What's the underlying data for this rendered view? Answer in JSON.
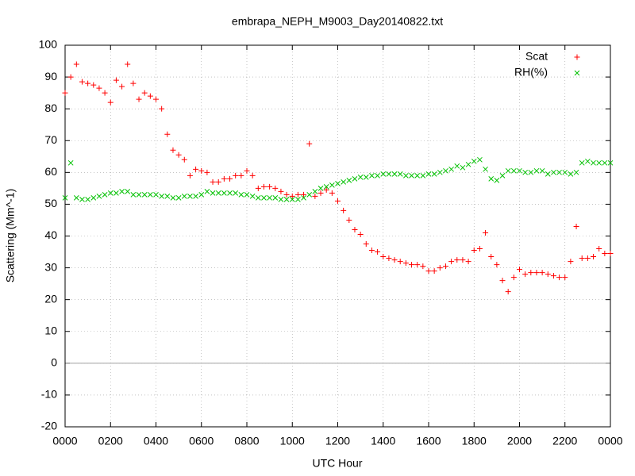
{
  "chart_data": {
    "type": "scatter",
    "title": "embrapa_NEPH_M9003_Day20140822.txt",
    "x_label": "UTC Hour",
    "y_label": "Scattering (Mm^-1)",
    "x": [
      0,
      0.25,
      0.5,
      0.75,
      1,
      1.25,
      1.5,
      1.75,
      2,
      2.25,
      2.5,
      2.75,
      3,
      3.25,
      3.5,
      3.75,
      4,
      4.25,
      4.5,
      4.75,
      5,
      5.25,
      5.5,
      5.75,
      6,
      6.25,
      6.5,
      6.75,
      7,
      7.25,
      7.5,
      7.75,
      8,
      8.25,
      8.5,
      8.75,
      9,
      9.25,
      9.5,
      9.75,
      10,
      10.25,
      10.5,
      10.75,
      11,
      11.25,
      11.5,
      11.75,
      12,
      12.25,
      12.5,
      12.75,
      13,
      13.25,
      13.5,
      13.75,
      14,
      14.25,
      14.5,
      14.75,
      15,
      15.25,
      15.5,
      15.75,
      16,
      16.25,
      16.5,
      16.75,
      17,
      17.25,
      17.5,
      17.75,
      18,
      18.25,
      18.5,
      18.75,
      19,
      19.25,
      19.5,
      19.75,
      20,
      20.25,
      20.5,
      20.75,
      21,
      21.25,
      21.5,
      21.75,
      22,
      22.25,
      22.5,
      22.75,
      23,
      23.25,
      23.5,
      23.75,
      24
    ],
    "series": [
      {
        "name": "Scat",
        "color": "#ff0000",
        "marker": "plus",
        "values": [
          85,
          90,
          94,
          88.5,
          88,
          87.5,
          86.5,
          85,
          82,
          89,
          87,
          94,
          88,
          83,
          85,
          84,
          83,
          80,
          72,
          67,
          65.5,
          64,
          59,
          61,
          60.5,
          60,
          57,
          57,
          58,
          58,
          59,
          59,
          60.5,
          59,
          55,
          55.5,
          55.5,
          55,
          54,
          53,
          52.5,
          53,
          53,
          69,
          52.5,
          53.5,
          54.5,
          53.5,
          51,
          48,
          45,
          42,
          40.5,
          37.5,
          35.5,
          35,
          33.5,
          33,
          32.5,
          32,
          31.5,
          31,
          31,
          30.5,
          29,
          29,
          30,
          30.5,
          32,
          32.5,
          32.5,
          32,
          35.5,
          36,
          41,
          33.5,
          31,
          26,
          22.5,
          27,
          29.5,
          28,
          28.5,
          28.5,
          28.5,
          28,
          27.5,
          27,
          27,
          32,
          43,
          33,
          33,
          33.5,
          36,
          34.5,
          34.5
        ]
      },
      {
        "name": "RH(%)",
        "color": "#00c000",
        "marker": "cross",
        "values": [
          52,
          63,
          52,
          51.5,
          51.5,
          52,
          52.5,
          53,
          53.5,
          53.5,
          54,
          54,
          53,
          53,
          53,
          53,
          53,
          52.5,
          52.5,
          52,
          52,
          52.5,
          52.5,
          52.5,
          53,
          54,
          53.5,
          53.5,
          53.5,
          53.5,
          53.5,
          53,
          53,
          52.5,
          52,
          52,
          52,
          52,
          51.5,
          51.5,
          51.5,
          51.5,
          52,
          53,
          54,
          55,
          55.5,
          56,
          56.5,
          57,
          57.5,
          58,
          58.5,
          58.5,
          59,
          59,
          59.5,
          59.5,
          59.5,
          59.5,
          59,
          59,
          59,
          59,
          59.5,
          59.5,
          60,
          60.5,
          61,
          62,
          61.5,
          62.5,
          63.5,
          64,
          61,
          58,
          57.5,
          59,
          60.5,
          60.5,
          60.5,
          60,
          60,
          60.5,
          60.5,
          59.5,
          60,
          60,
          60,
          59.5,
          60,
          63,
          63.5,
          63,
          63,
          63,
          63
        ]
      }
    ],
    "xlim": [
      0,
      24
    ],
    "xticks": [
      {
        "value": 0,
        "label": "0000"
      },
      {
        "value": 2,
        "label": "0200"
      },
      {
        "value": 4,
        "label": "0400"
      },
      {
        "value": 6,
        "label": "0600"
      },
      {
        "value": 8,
        "label": "0800"
      },
      {
        "value": 10,
        "label": "1000"
      },
      {
        "value": 12,
        "label": "1200"
      },
      {
        "value": 14,
        "label": "1400"
      },
      {
        "value": 16,
        "label": "1600"
      },
      {
        "value": 18,
        "label": "1800"
      },
      {
        "value": 20,
        "label": "2000"
      },
      {
        "value": 22,
        "label": "2200"
      },
      {
        "value": 24,
        "label": "0000"
      }
    ],
    "ylim": [
      -20,
      100
    ],
    "yticks": [
      -20,
      -10,
      0,
      10,
      20,
      30,
      40,
      50,
      60,
      70,
      80,
      90,
      100
    ],
    "grid": true,
    "zero_line": true,
    "legend": "top right"
  }
}
